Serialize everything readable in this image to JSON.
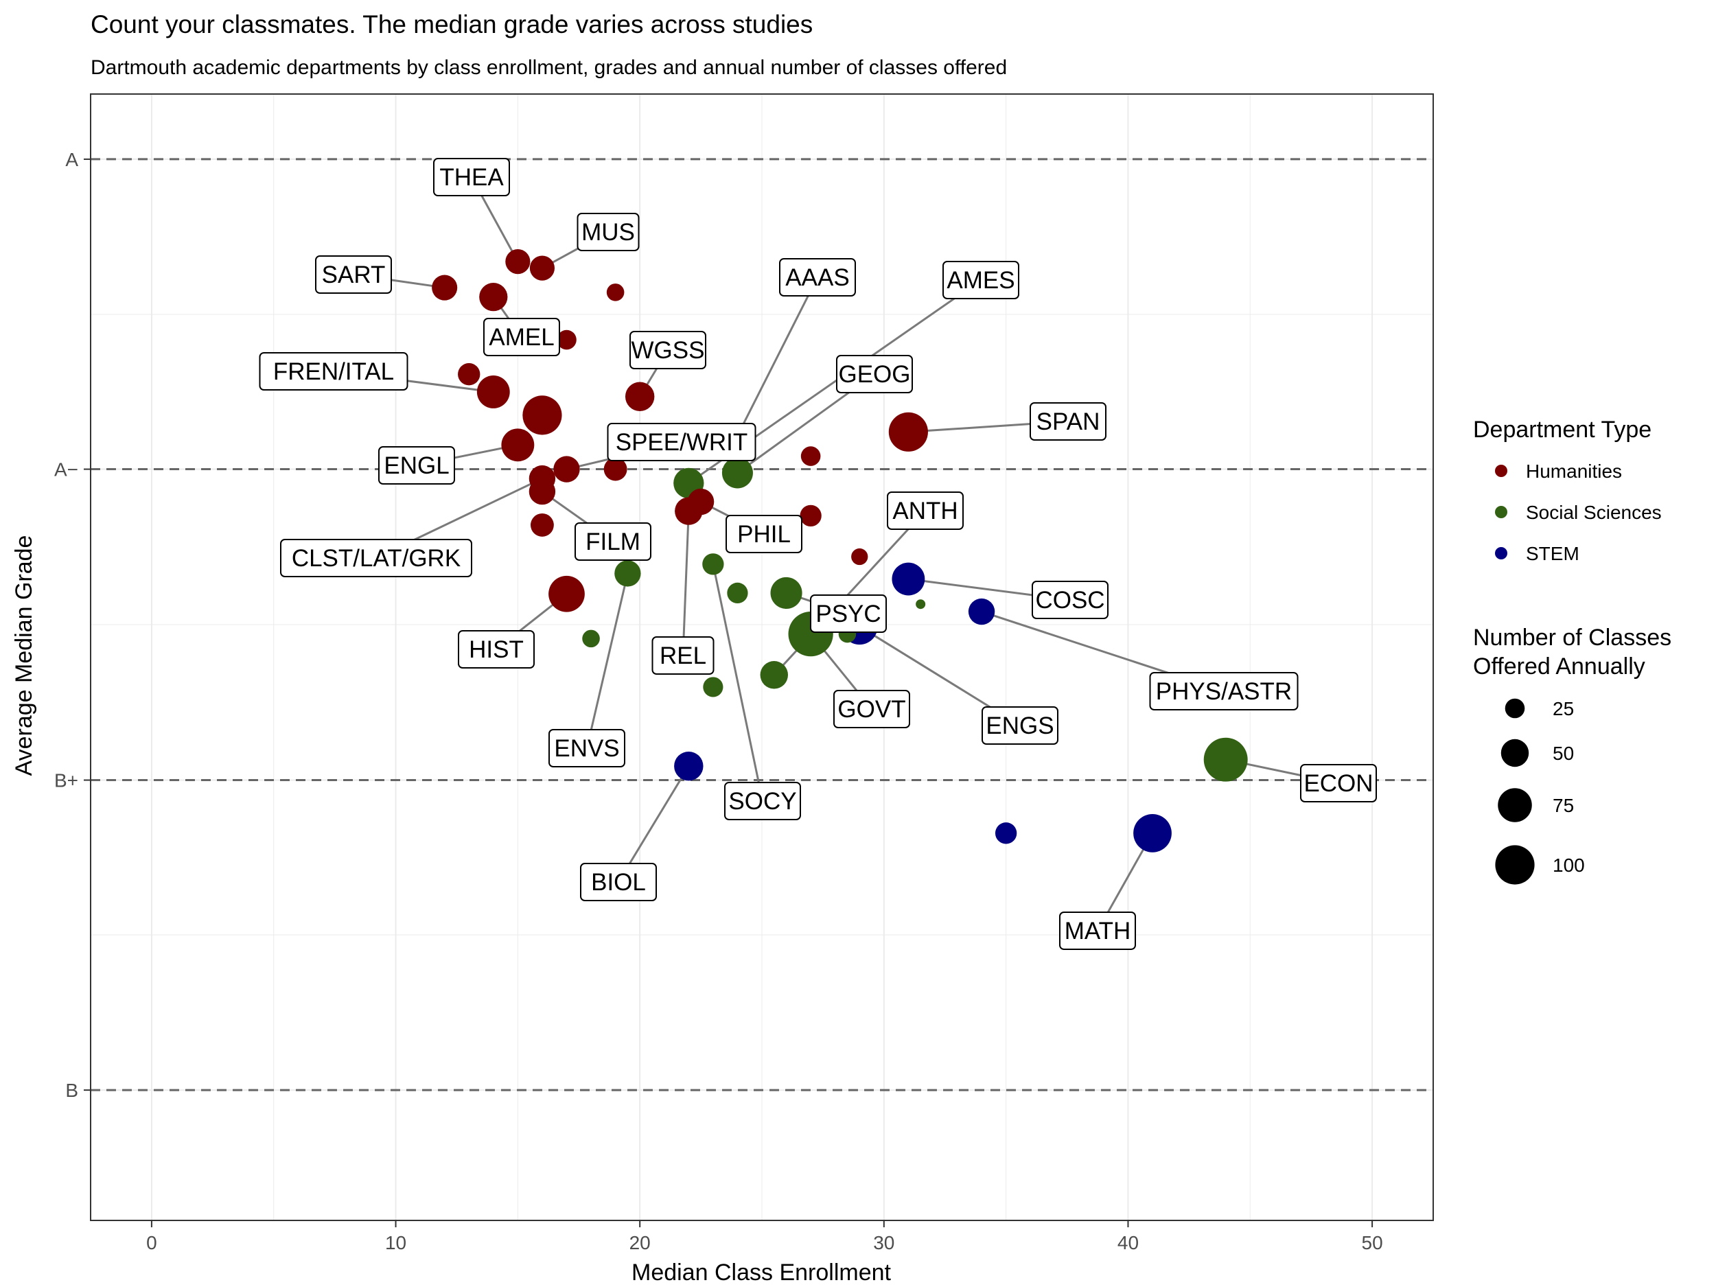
{
  "chart_data": {
    "type": "scatter",
    "title": "Count your classmates. The median grade varies across studies",
    "subtitle": "Dartmouth academic departments by class enrollment, grades and annual number of classes offered",
    "xlabel": "Median Class Enrollment",
    "ylabel": "Average Median Grade",
    "xlim": [
      -2.5,
      52.5
    ],
    "ylim": [
      2.86,
      4.07
    ],
    "x_ticks": [
      0,
      10,
      20,
      30,
      40,
      50
    ],
    "y_ticks": [
      {
        "value": 4.0,
        "label": "A"
      },
      {
        "value": 3.667,
        "label": "A−"
      },
      {
        "value": 3.333,
        "label": "B+"
      },
      {
        "value": 3.0,
        "label": "B"
      }
    ],
    "y_dashed_lines": [
      3.0,
      3.333,
      3.667,
      4.0
    ],
    "grid": true,
    "colors": {
      "Humanities": "#7b0000",
      "Social Sciences": "#336114",
      "STEM": "#000080"
    },
    "legend": {
      "placement": "right",
      "color_title": "Department Type",
      "color_items": [
        "Humanities",
        "Social Sciences",
        "STEM"
      ],
      "size_title_lines": [
        "Number of Classes",
        "Offered Annually"
      ],
      "size_items": [
        25,
        50,
        75,
        100
      ]
    },
    "points": [
      {
        "label": "THEA",
        "type": "Humanities",
        "x": 15.0,
        "y": 3.89,
        "n": 40
      },
      {
        "label": "MUS",
        "type": "Humanities",
        "x": 16.0,
        "y": 3.883,
        "n": 40
      },
      {
        "label": "SART",
        "type": "Humanities",
        "x": 12.0,
        "y": 3.862,
        "n": 42
      },
      {
        "label": "",
        "type": "Humanities",
        "x": 19.0,
        "y": 3.857,
        "n": 20
      },
      {
        "label": "AMEL",
        "type": "Humanities",
        "x": 14.0,
        "y": 3.852,
        "n": 52
      },
      {
        "label": "",
        "type": "Humanities",
        "x": 17.0,
        "y": 3.806,
        "n": 25
      },
      {
        "label": "",
        "type": "Humanities",
        "x": 13.0,
        "y": 3.769,
        "n": 32
      },
      {
        "label": "FREN/ITAL",
        "type": "Humanities",
        "x": 14.0,
        "y": 3.75,
        "n": 70
      },
      {
        "label": "WGSS",
        "type": "Humanities",
        "x": 20.0,
        "y": 3.745,
        "n": 55
      },
      {
        "label": "",
        "type": "Humanities",
        "x": 16.0,
        "y": 3.725,
        "n": 100
      },
      {
        "label": "AAAS",
        "type": "Humanities",
        "x": 24.0,
        "y": 3.703,
        "n": 25
      },
      {
        "label": "SPAN",
        "type": "Humanities",
        "x": 31.0,
        "y": 3.707,
        "n": 100
      },
      {
        "label": "ENGL",
        "type": "Humanities",
        "x": 15.0,
        "y": 3.693,
        "n": 70
      },
      {
        "label": "",
        "type": "Humanities",
        "x": 27.0,
        "y": 3.681,
        "n": 25
      },
      {
        "label": "SPEE/WRIT",
        "type": "Humanities",
        "x": 17.0,
        "y": 3.667,
        "n": 45
      },
      {
        "label": "",
        "type": "Humanities",
        "x": 19.0,
        "y": 3.667,
        "n": 35
      },
      {
        "label": "CLST/LAT/GRK",
        "type": "Humanities",
        "x": 16.0,
        "y": 3.657,
        "n": 45
      },
      {
        "label": "FILM",
        "type": "Humanities",
        "x": 16.0,
        "y": 3.643,
        "n": 45
      },
      {
        "label": "PHIL",
        "type": "Humanities",
        "x": 22.5,
        "y": 3.632,
        "n": 45
      },
      {
        "label": "REL",
        "type": "Humanities",
        "x": 22.0,
        "y": 3.622,
        "n": 50
      },
      {
        "label": "",
        "type": "Humanities",
        "x": 27.0,
        "y": 3.617,
        "n": 30
      },
      {
        "label": "",
        "type": "Humanities",
        "x": 16.0,
        "y": 3.607,
        "n": 35
      },
      {
        "label": "",
        "type": "Humanities",
        "x": 29.0,
        "y": 3.573,
        "n": 18
      },
      {
        "label": "HIST",
        "type": "Humanities",
        "x": 17.0,
        "y": 3.533,
        "n": 85
      },
      {
        "label": "GEOG",
        "type": "Social Sciences",
        "x": 24.0,
        "y": 3.663,
        "n": 62
      },
      {
        "label": "AMES",
        "type": "Social Sciences",
        "x": 22.0,
        "y": 3.652,
        "n": 60
      },
      {
        "label": "ENVS",
        "type": "Social Sciences",
        "x": 19.5,
        "y": 3.555,
        "n": 45
      },
      {
        "label": "",
        "type": "Social Sciences",
        "x": 24.0,
        "y": 3.534,
        "n": 28
      },
      {
        "label": "PSYC",
        "type": "Social Sciences",
        "x": 26.0,
        "y": 3.534,
        "n": 65
      },
      {
        "label": "",
        "type": "Social Sciences",
        "x": 31.5,
        "y": 3.522,
        "n": 6
      },
      {
        "label": "",
        "type": "Social Sciences",
        "x": 28.5,
        "y": 3.49,
        "n": 20
      },
      {
        "label": "GOVT",
        "type": "Social Sciences",
        "x": 27.0,
        "y": 3.49,
        "n": 130
      },
      {
        "label": "",
        "type": "Social Sciences",
        "x": 18.0,
        "y": 3.485,
        "n": 20
      },
      {
        "label": "ANTH",
        "type": "Social Sciences",
        "x": 25.5,
        "y": 3.446,
        "n": 50
      },
      {
        "label": "",
        "type": "Social Sciences",
        "x": 23.0,
        "y": 3.433,
        "n": 26
      },
      {
        "label": "SOCY",
        "type": "Social Sciences",
        "x": 23.0,
        "y": 3.565,
        "n": 30
      },
      {
        "label": "ECON",
        "type": "Social Sciences",
        "x": 44.0,
        "y": 3.355,
        "n": 125
      },
      {
        "label": "COSC",
        "type": "STEM",
        "x": 31.0,
        "y": 3.549,
        "n": 70
      },
      {
        "label": "ENGS",
        "type": "STEM",
        "x": 29.0,
        "y": 3.498,
        "n": 85
      },
      {
        "label": "PHYS/ASTR",
        "type": "STEM",
        "x": 34.0,
        "y": 3.514,
        "n": 45
      },
      {
        "label": "BIOL",
        "type": "STEM",
        "x": 22.0,
        "y": 3.348,
        "n": 55
      },
      {
        "label": "",
        "type": "STEM",
        "x": 35.0,
        "y": 3.276,
        "n": 30
      },
      {
        "label": "MATH",
        "type": "STEM",
        "x": 41.0,
        "y": 3.276,
        "n": 95
      }
    ]
  }
}
